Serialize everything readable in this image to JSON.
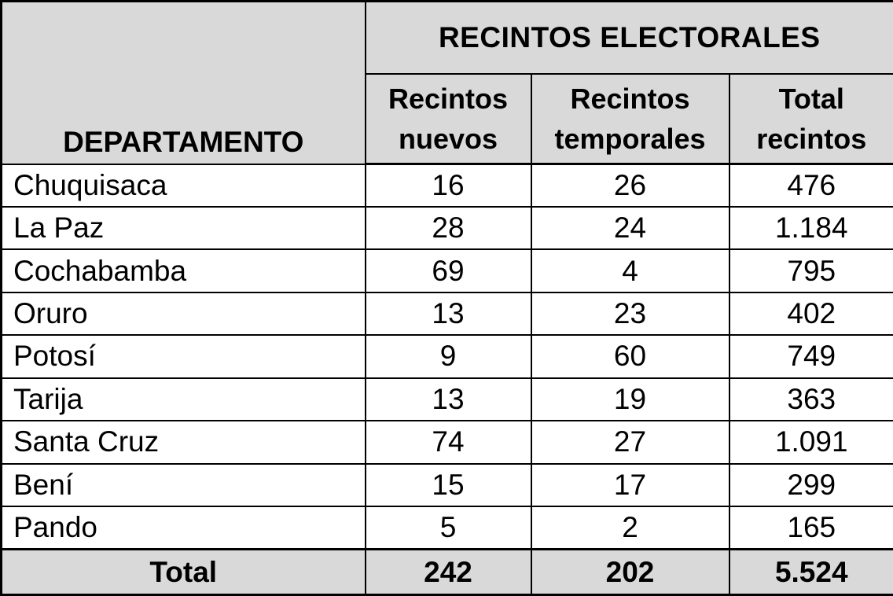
{
  "table": {
    "row_header": "DEPARTAMENTO",
    "group_header": "RECINTOS ELECTORALES",
    "columns": [
      "Recintos nuevos",
      "Recintos temporales",
      "Total recintos"
    ],
    "rows": [
      {
        "departamento": "Chuquisaca",
        "nuevos": "16",
        "temporales": "26",
        "total": "476"
      },
      {
        "departamento": "La Paz",
        "nuevos": "28",
        "temporales": "24",
        "total": "1.184"
      },
      {
        "departamento": "Cochabamba",
        "nuevos": "69",
        "temporales": "4",
        "total": "795"
      },
      {
        "departamento": "Oruro",
        "nuevos": "13",
        "temporales": "23",
        "total": "402"
      },
      {
        "departamento": "Potosí",
        "nuevos": "9",
        "temporales": "60",
        "total": "749"
      },
      {
        "departamento": "Tarija",
        "nuevos": "13",
        "temporales": "19",
        "total": "363"
      },
      {
        "departamento": "Santa Cruz",
        "nuevos": "74",
        "temporales": "27",
        "total": "1.091"
      },
      {
        "departamento": "Bení",
        "nuevos": "15",
        "temporales": "17",
        "total": "299"
      },
      {
        "departamento": "Pando",
        "nuevos": "5",
        "temporales": "2",
        "total": "165"
      }
    ],
    "total_row": {
      "label": "Total",
      "nuevos": "242",
      "temporales": "202",
      "total": "5.524"
    }
  },
  "colors": {
    "header_bg": "#d9d9d9",
    "total_row_bg": "#d9d9d9",
    "border": "#000000",
    "body_bg": "#ffffff",
    "text": "#000000"
  }
}
